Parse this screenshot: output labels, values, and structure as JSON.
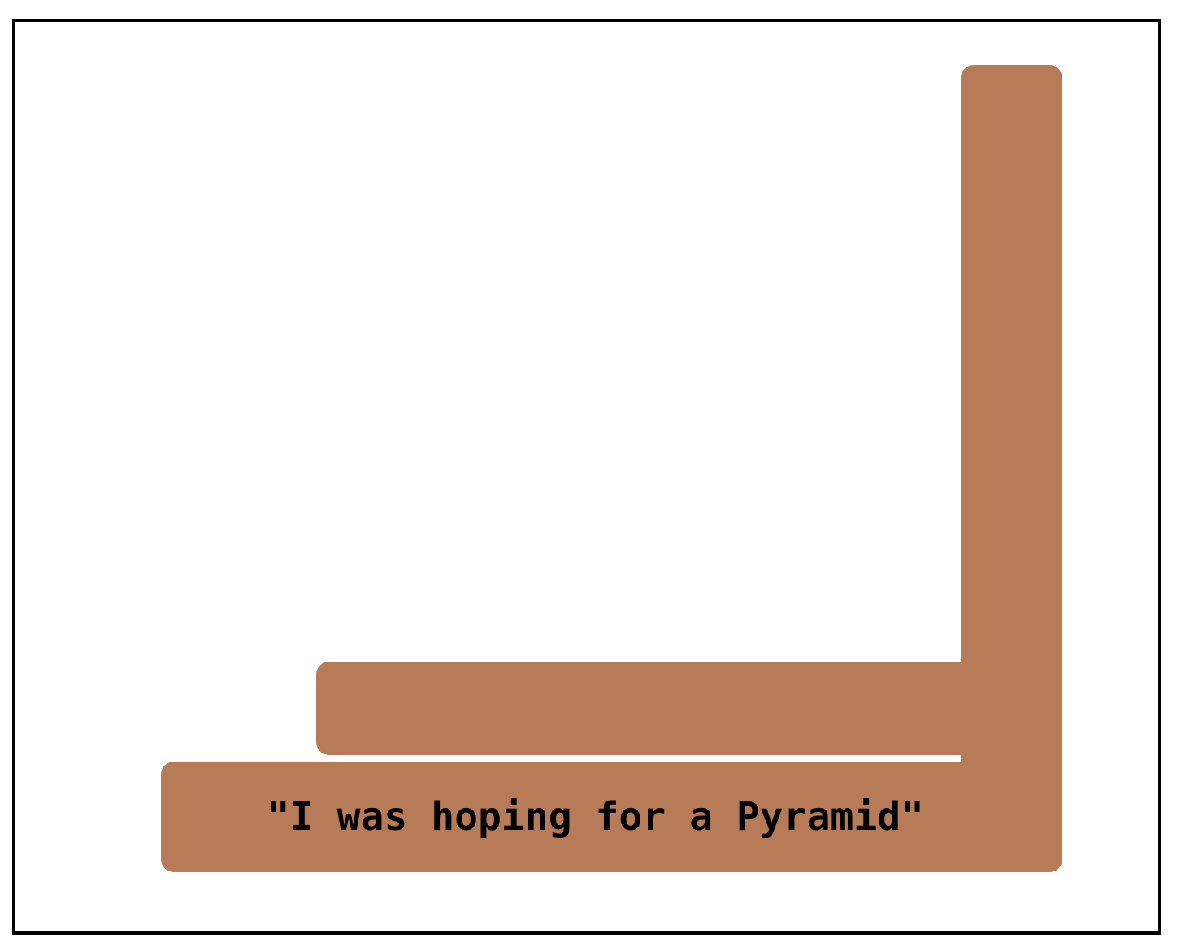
{
  "colors": {
    "block": "#b87b58",
    "frame_border": "#000000",
    "background": "#ffffff"
  },
  "caption": {
    "text": "\"I was hoping for a Pyramid\""
  }
}
